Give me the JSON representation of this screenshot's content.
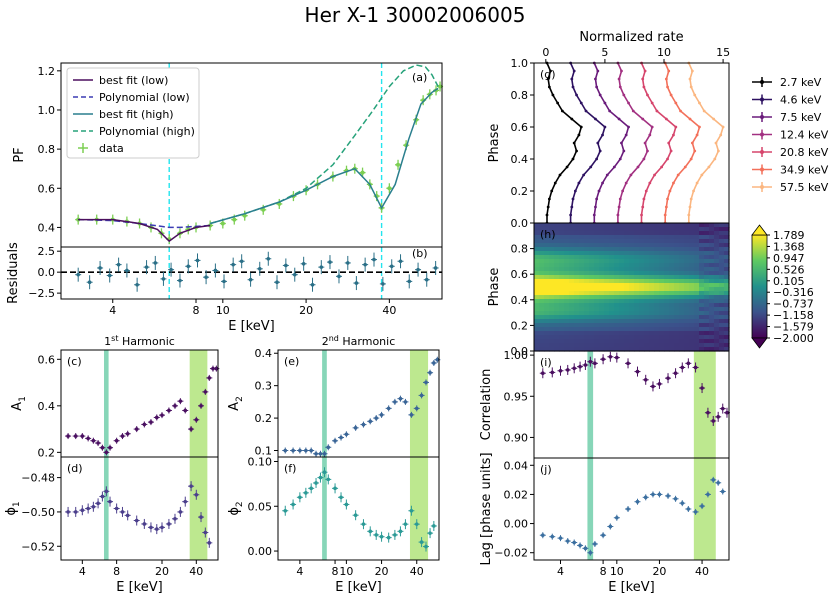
{
  "title": "Her X-1 30002006005",
  "colors": {
    "low_fit": "#4b0f5e",
    "low_poly": "#3c3cb4",
    "high_fit": "#2a7f8e",
    "high_poly": "#26a27a",
    "data": "#7ccf52",
    "resid": "#2a6f87",
    "cyan_line": "#22e5ee",
    "teal_band": "#5fc8a0",
    "green_band": "#a7e06a"
  },
  "chart_data": [
    {
      "id": "a",
      "type": "line",
      "panel_label": "(a)",
      "ylabel": "PF",
      "xscale": "log",
      "xlim": [
        2.6,
        62
      ],
      "ylim": [
        0.3,
        1.24
      ],
      "yticks": [
        "0.4",
        "0.6",
        "0.8",
        "1.0",
        "1.2"
      ],
      "yticks_values": [
        0.4,
        0.6,
        0.8,
        1.0,
        1.2
      ],
      "vlines": [
        6.4,
        37.5
      ],
      "legend": [
        "best fit (low)",
        "Polynomial (low)",
        "best fit (high)",
        "Polynomial (high)",
        "data"
      ],
      "legend_position": "top-left",
      "series": [
        {
          "name": "best fit (low)",
          "x": [
            3,
            4,
            5,
            5.8,
            6.4,
            7,
            8,
            9
          ],
          "y": [
            0.44,
            0.44,
            0.42,
            0.39,
            0.33,
            0.37,
            0.4,
            0.41
          ]
        },
        {
          "name": "Polynomial (low)",
          "x": [
            3,
            4,
            5,
            6,
            6.4,
            7,
            8,
            9
          ],
          "y": [
            0.44,
            0.435,
            0.42,
            0.405,
            0.4,
            0.4,
            0.405,
            0.41
          ]
        },
        {
          "name": "best fit (high)",
          "x": [
            9,
            12,
            16,
            20,
            25,
            30,
            34,
            37.5,
            42,
            47,
            52,
            57,
            60
          ],
          "y": [
            0.42,
            0.47,
            0.53,
            0.59,
            0.66,
            0.7,
            0.62,
            0.5,
            0.62,
            0.85,
            1.03,
            1.09,
            1.11
          ]
        },
        {
          "name": "Polynomial (high)",
          "x": [
            9,
            12,
            16,
            20,
            25,
            30,
            35,
            40,
            45,
            50,
            54,
            57,
            60
          ],
          "y": [
            0.42,
            0.47,
            0.53,
            0.6,
            0.72,
            0.87,
            1.0,
            1.12,
            1.2,
            1.23,
            1.22,
            1.18,
            1.12
          ]
        },
        {
          "name": "data",
          "x": [
            3,
            3.5,
            4,
            4.5,
            5,
            5.5,
            6,
            6.4,
            7,
            7.5,
            8,
            9,
            10,
            11,
            12,
            14,
            16,
            18,
            20,
            22,
            25,
            28,
            30,
            32,
            34,
            36,
            37.5,
            40,
            43,
            46,
            50,
            53,
            56,
            59,
            61
          ],
          "y": [
            0.44,
            0.44,
            0.44,
            0.43,
            0.42,
            0.4,
            0.37,
            0.34,
            0.37,
            0.39,
            0.4,
            0.41,
            0.42,
            0.44,
            0.46,
            0.49,
            0.52,
            0.56,
            0.59,
            0.62,
            0.66,
            0.69,
            0.7,
            0.68,
            0.62,
            0.56,
            0.5,
            0.6,
            0.72,
            0.82,
            0.95,
            1.05,
            1.08,
            1.1,
            1.12
          ]
        }
      ]
    },
    {
      "id": "b",
      "type": "scatter",
      "panel_label": "(b)",
      "ylabel": "Residuals",
      "xlabel": "E [keV]",
      "xscale": "log",
      "xlim": [
        2.6,
        62
      ],
      "ylim": [
        -3.2,
        3
      ],
      "yticks": [
        "−2.5",
        "0.0",
        "2.5"
      ],
      "yticks_values": [
        -2.5,
        0,
        2.5
      ],
      "xticks": [
        "4",
        "8",
        "10",
        "20",
        "40"
      ],
      "xticks_values": [
        4,
        8,
        10,
        20,
        40
      ],
      "series": [
        {
          "name": "",
          "x": [
            3.0,
            3.3,
            3.6,
            3.9,
            4.2,
            4.5,
            4.9,
            5.3,
            5.7,
            6.1,
            6.5,
            7.0,
            7.5,
            8.1,
            8.7,
            9.4,
            10.1,
            10.9,
            11.7,
            12.6,
            13.6,
            14.6,
            15.7,
            16.9,
            18.2,
            19.6,
            21.1,
            22.7,
            24.4,
            26.3,
            28.3,
            30.4,
            32.7,
            35.2,
            37.9,
            40.8,
            43.9,
            47.2,
            50.8,
            54.6,
            58.8
          ],
          "y": [
            -0.3,
            -1.2,
            0.5,
            -0.4,
            0.9,
            0.2,
            -1.5,
            0.6,
            1.1,
            -0.8,
            0.3,
            -1.0,
            0.7,
            1.4,
            -0.6,
            0.2,
            -1.1,
            0.9,
            1.3,
            -0.9,
            0.4,
            1.6,
            -1.2,
            0.8,
            -0.3,
            1.0,
            -1.5,
            0.6,
            1.2,
            -0.5,
            1.1,
            -1.3,
            0.9,
            1.5,
            -1.4,
            0.7,
            1.3,
            -1.1,
            0.3,
            -0.9,
            0.5
          ]
        }
      ]
    },
    {
      "id": "c",
      "type": "scatter",
      "panel_label": "(c)",
      "panel_title_main": "1",
      "panel_title_sup": "st",
      "panel_title_rest": " Harmonic",
      "ylabel": "A",
      "ylabel_sub": "1",
      "xscale": "log",
      "xlim": [
        2.6,
        62
      ],
      "ylim": [
        0.18,
        0.64
      ],
      "yticks": [
        "0.2",
        "0.4",
        "0.6"
      ],
      "yticks_values": [
        0.2,
        0.4,
        0.6
      ],
      "bands": [
        [
          6.2,
          6.8
        ],
        [
          35,
          50
        ]
      ],
      "series": [
        {
          "name": "",
          "x": [
            3,
            3.5,
            4,
            4.5,
            5,
            5.5,
            6,
            6.5,
            7,
            8,
            9,
            10,
            12,
            14,
            16,
            18,
            20,
            23,
            26,
            29,
            32,
            36,
            40,
            44,
            48,
            52,
            56,
            60
          ],
          "y": [
            0.27,
            0.27,
            0.27,
            0.26,
            0.25,
            0.24,
            0.22,
            0.2,
            0.22,
            0.25,
            0.27,
            0.28,
            0.3,
            0.32,
            0.33,
            0.35,
            0.36,
            0.38,
            0.4,
            0.42,
            0.38,
            0.3,
            0.34,
            0.4,
            0.46,
            0.52,
            0.56,
            0.56
          ]
        }
      ]
    },
    {
      "id": "d",
      "type": "scatter",
      "panel_label": "(d)",
      "ylabel": "ϕ",
      "ylabel_sub": "1",
      "xlabel": "E [keV]",
      "xscale": "log",
      "xlim": [
        2.6,
        62
      ],
      "ylim": [
        -0.528,
        -0.468
      ],
      "yticks": [
        "−0.48",
        "−0.50",
        "−0.52"
      ],
      "yticks_values": [
        -0.48,
        -0.5,
        -0.52
      ],
      "xticks": [
        "4",
        "8",
        "20",
        "40"
      ],
      "xticks_values": [
        4,
        8,
        20,
        40
      ],
      "bands": [
        [
          6.2,
          6.8
        ],
        [
          35,
          50
        ]
      ],
      "series": [
        {
          "name": "",
          "x": [
            3,
            3.5,
            4,
            4.5,
            5,
            5.5,
            6,
            6.5,
            7,
            8,
            9,
            10,
            12,
            14,
            16,
            18,
            20,
            23,
            26,
            29,
            32,
            36,
            40,
            44,
            48,
            52
          ],
          "y": [
            -0.5,
            -0.5,
            -0.499,
            -0.498,
            -0.497,
            -0.495,
            -0.491,
            -0.488,
            -0.494,
            -0.498,
            -0.5,
            -0.502,
            -0.505,
            -0.507,
            -0.509,
            -0.51,
            -0.509,
            -0.507,
            -0.504,
            -0.5,
            -0.494,
            -0.485,
            -0.49,
            -0.503,
            -0.512,
            -0.518
          ]
        }
      ]
    },
    {
      "id": "e",
      "type": "scatter",
      "panel_label": "(e)",
      "panel_title_main": "2",
      "panel_title_sup": "nd",
      "panel_title_rest": " Harmonic",
      "ylabel": "A",
      "ylabel_sub": "2",
      "xscale": "log",
      "xlim": [
        2.6,
        62
      ],
      "ylim": [
        0.08,
        0.41
      ],
      "yticks": [
        "0.1",
        "0.2",
        "0.3",
        "0.4"
      ],
      "yticks_values": [
        0.1,
        0.2,
        0.3,
        0.4
      ],
      "bands": [
        [
          6.2,
          6.8
        ],
        [
          35,
          50
        ]
      ],
      "series": [
        {
          "name": "",
          "x": [
            3,
            3.5,
            4,
            4.5,
            5,
            5.5,
            6,
            6.5,
            7,
            8,
            9,
            10,
            12,
            14,
            16,
            18,
            20,
            23,
            26,
            29,
            32,
            36,
            40,
            44,
            48,
            52,
            56,
            60
          ],
          "y": [
            0.1,
            0.1,
            0.1,
            0.1,
            0.1,
            0.09,
            0.09,
            0.09,
            0.11,
            0.13,
            0.14,
            0.15,
            0.17,
            0.18,
            0.19,
            0.2,
            0.21,
            0.23,
            0.25,
            0.26,
            0.25,
            0.21,
            0.23,
            0.27,
            0.31,
            0.34,
            0.37,
            0.38
          ]
        }
      ]
    },
    {
      "id": "f",
      "type": "scatter",
      "panel_label": "(f)",
      "ylabel": "ϕ",
      "ylabel_sub": "2",
      "xlabel": "E [keV]",
      "xscale": "log",
      "xlim": [
        2.6,
        62
      ],
      "ylim": [
        -0.01,
        0.105
      ],
      "yticks": [
        "0.10",
        "0.05",
        "0.00"
      ],
      "yticks_values": [
        0.1,
        0.05,
        0.0
      ],
      "xticks": [
        "4",
        "8",
        "10",
        "20",
        "40"
      ],
      "xticks_values": [
        4,
        8,
        10,
        20,
        40
      ],
      "bands": [
        [
          6.2,
          6.8
        ],
        [
          35,
          50
        ]
      ],
      "series": [
        {
          "name": "",
          "x": [
            3,
            3.5,
            4,
            4.5,
            5,
            5.5,
            6,
            6.5,
            7,
            8,
            9,
            10,
            12,
            14,
            16,
            18,
            20,
            23,
            26,
            29,
            32,
            36,
            40,
            44,
            48,
            52,
            56
          ],
          "y": [
            0.045,
            0.052,
            0.06,
            0.065,
            0.07,
            0.076,
            0.082,
            0.088,
            0.08,
            0.07,
            0.06,
            0.052,
            0.04,
            0.03,
            0.022,
            0.018,
            0.016,
            0.015,
            0.018,
            0.022,
            0.03,
            0.045,
            0.03,
            0.01,
            0.005,
            0.02,
            0.028
          ]
        }
      ]
    },
    {
      "id": "g",
      "type": "line",
      "panel_label": "(g)",
      "ylabel": "Phase",
      "xlabel": "Normalized rate",
      "xlabel_position": "top",
      "xlim": [
        -1,
        15.5
      ],
      "ylim": [
        0,
        1
      ],
      "xticks": [
        "0",
        "5",
        "10",
        "15"
      ],
      "xticks_values": [
        0,
        5,
        10,
        15
      ],
      "yticks": [
        "1.0",
        "0.8",
        "0.6",
        "0.4",
        "0.2",
        "0.0"
      ],
      "yticks_values": [
        1.0,
        0.8,
        0.6,
        0.4,
        0.2,
        0.0
      ],
      "legend_position": "right",
      "series": [
        {
          "name": "2.7 keV",
          "offset": 0,
          "color": "#000000"
        },
        {
          "name": "4.6 keV",
          "offset": 2,
          "color": "#2d1161"
        },
        {
          "name": "7.5 keV",
          "offset": 4,
          "color": "#6a1b7b"
        },
        {
          "name": "12.4 keV",
          "offset": 6,
          "color": "#a23081"
        },
        {
          "name": "20.8 keV",
          "offset": 8,
          "color": "#d6456c"
        },
        {
          "name": "34.9 keV",
          "offset": 10,
          "color": "#f3705a"
        },
        {
          "name": "57.5 keV",
          "offset": 12,
          "color": "#fbb680"
        }
      ],
      "profile": {
        "phase": [
          0,
          0.05,
          0.1,
          0.15,
          0.2,
          0.25,
          0.3,
          0.35,
          0.4,
          0.45,
          0.5,
          0.55,
          0.6,
          0.65,
          0.7,
          0.75,
          0.8,
          0.85,
          0.9,
          0.95,
          1.0
        ],
        "rate": [
          0.1,
          0.1,
          0.2,
          0.3,
          0.5,
          0.8,
          1.2,
          1.8,
          2.3,
          2.6,
          2.4,
          2.8,
          3.0,
          2.2,
          1.4,
          1.0,
          0.6,
          0.3,
          0.2,
          0.4,
          0.1
        ]
      }
    },
    {
      "id": "h",
      "type": "heatmap",
      "panel_label": "(h)",
      "ylabel": "Phase",
      "ylim": [
        0,
        1
      ],
      "yticks": [
        "0.8",
        "0.6",
        "0.4",
        "0.2",
        "0.0"
      ],
      "yticks_values": [
        0.8,
        0.6,
        0.4,
        0.2,
        0.0
      ],
      "colorbar_ticks": [
        "1.789",
        "1.368",
        "0.947",
        "0.526",
        "0.105",
        "−0.316",
        "−0.737",
        "−1.158",
        "−1.579",
        "−2.000"
      ],
      "colorbar_range": [
        -2.0,
        1.789
      ]
    },
    {
      "id": "i",
      "type": "scatter",
      "panel_label": "(i)",
      "ylabel": "Correlation",
      "xscale": "log",
      "xlim": [
        2.6,
        62
      ],
      "ylim": [
        0.875,
        1.005
      ],
      "yticks": [
        "1.00",
        "0.95",
        "0.90"
      ],
      "yticks_values": [
        1.0,
        0.95,
        0.9
      ],
      "bands": [
        [
          6.2,
          6.8
        ],
        [
          35,
          50
        ]
      ],
      "series": [
        {
          "name": "",
          "x": [
            3,
            3.5,
            4,
            4.5,
            5,
            5.5,
            6,
            6.5,
            7,
            8,
            9,
            10,
            12,
            14,
            16,
            18,
            20,
            23,
            26,
            29,
            32,
            36,
            40,
            44,
            48,
            52,
            56,
            60
          ],
          "y": [
            0.978,
            0.979,
            0.981,
            0.982,
            0.984,
            0.986,
            0.988,
            0.992,
            0.99,
            0.995,
            0.998,
            0.997,
            0.99,
            0.98,
            0.97,
            0.962,
            0.965,
            0.972,
            0.978,
            0.985,
            0.99,
            0.985,
            0.96,
            0.93,
            0.92,
            0.925,
            0.935,
            0.93
          ]
        }
      ]
    },
    {
      "id": "j",
      "type": "scatter",
      "panel_label": "(j)",
      "ylabel": "Lag [phase units]",
      "xlabel": "E [keV]",
      "xscale": "log",
      "xlim": [
        2.6,
        62
      ],
      "ylim": [
        -0.025,
        0.045
      ],
      "yticks": [
        "0.04",
        "0.02",
        "0.00",
        "−0.02"
      ],
      "yticks_values": [
        0.04,
        0.02,
        0.0,
        -0.02
      ],
      "xticks": [
        "4",
        "8",
        "10",
        "20",
        "40"
      ],
      "xticks_values": [
        4,
        8,
        10,
        20,
        40
      ],
      "bands": [
        [
          6.2,
          6.8
        ],
        [
          35,
          50
        ]
      ],
      "series": [
        {
          "name": "",
          "x": [
            3,
            3.5,
            4,
            4.5,
            5,
            5.5,
            6,
            6.5,
            7,
            8,
            9,
            10,
            12,
            14,
            16,
            18,
            20,
            23,
            26,
            29,
            32,
            36,
            40,
            44,
            48,
            52,
            56
          ],
          "y": [
            -0.008,
            -0.009,
            -0.01,
            -0.012,
            -0.013,
            -0.015,
            -0.017,
            -0.02,
            -0.014,
            -0.008,
            -0.002,
            0.004,
            0.01,
            0.015,
            0.018,
            0.02,
            0.02,
            0.019,
            0.017,
            0.014,
            0.01,
            0.008,
            0.012,
            0.02,
            0.03,
            0.028,
            0.022
          ]
        }
      ]
    }
  ]
}
